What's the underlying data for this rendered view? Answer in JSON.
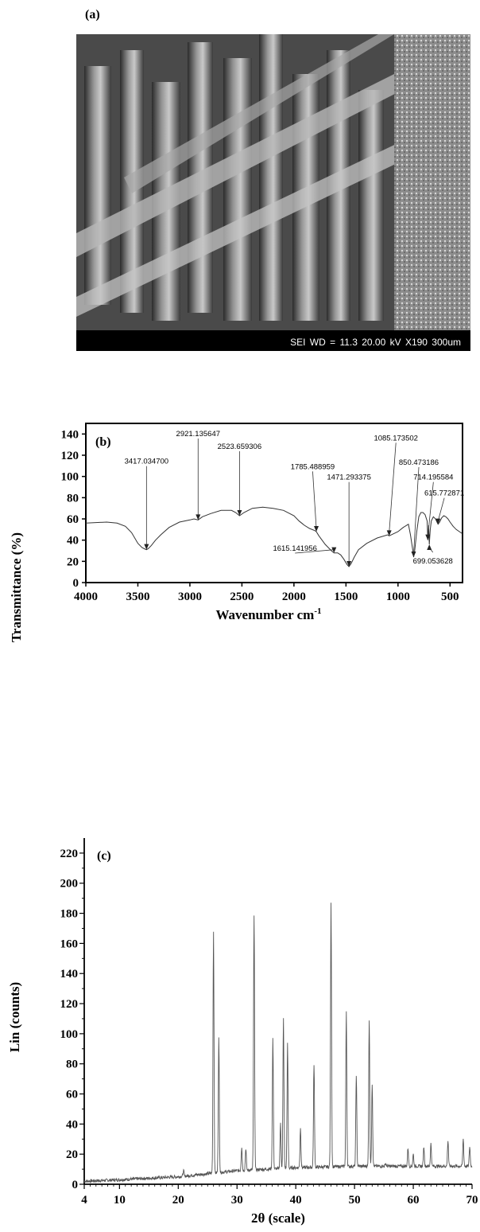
{
  "panels": {
    "a": {
      "label": "(a)",
      "sem_info": "SEI   WD = 11.3   20.00 kV   X190   300um"
    }
  },
  "chart_data": [
    {
      "type": "line",
      "panel_label": "(b)",
      "xlabel": "Wavenumber cm",
      "xlabel_sup": "-1",
      "ylabel": "Transmittance (%)",
      "xlim": [
        4000,
        380
      ],
      "ylim": [
        0,
        150
      ],
      "xticks": [
        4000,
        3500,
        3000,
        2500,
        2000,
        1500,
        1000,
        500
      ],
      "yticks": [
        0,
        20,
        40,
        60,
        80,
        100,
        120,
        140
      ],
      "series": [
        {
          "x": [
            4000,
            3800,
            3700,
            3620,
            3560,
            3500,
            3460,
            3430,
            3417,
            3400,
            3370,
            3330,
            3280,
            3200,
            3100,
            3000,
            2960,
            2921,
            2880,
            2800,
            2700,
            2600,
            2560,
            2523,
            2480,
            2400,
            2300,
            2200,
            2100,
            2000,
            1950,
            1900,
            1850,
            1800,
            1785,
            1760,
            1700,
            1640,
            1615,
            1580,
            1550,
            1520,
            1490,
            1471,
            1450,
            1420,
            1380,
            1300,
            1200,
            1100,
            1085,
            1000,
            950,
            900,
            880,
            860,
            850,
            840,
            820,
            800,
            780,
            760,
            740,
            720,
            714,
            705,
            699,
            690,
            680,
            660,
            640,
            625,
            615,
            600,
            580,
            560,
            540,
            520,
            500,
            470,
            440,
            410,
            380
          ],
          "y": [
            56,
            57,
            56,
            53,
            47,
            37,
            33,
            31.5,
            31,
            32,
            35,
            40,
            45,
            52,
            57,
            59,
            60,
            59,
            62,
            65,
            68,
            68,
            66,
            63,
            66,
            70,
            71,
            70,
            68,
            63,
            58,
            54,
            51,
            49,
            48,
            44,
            36,
            30,
            28,
            28,
            26,
            22,
            17,
            15,
            18,
            24,
            31,
            37,
            42,
            45,
            44,
            48,
            52,
            55,
            45,
            32,
            24,
            30,
            48,
            62,
            66,
            66,
            64,
            58,
            40,
            54,
            36,
            50,
            58,
            62,
            60,
            57,
            55,
            57,
            61,
            63,
            62,
            60,
            57,
            53,
            50,
            48,
            46
          ]
        }
      ],
      "annotations": [
        {
          "text": "3417.034700",
          "x": 3417,
          "y": 31,
          "label_x": 3417,
          "label_y": 112
        },
        {
          "text": "2921.135647",
          "x": 2921,
          "y": 59,
          "label_x": 2921,
          "label_y": 138
        },
        {
          "text": "2523.659306",
          "x": 2523,
          "y": 63,
          "label_x": 2523,
          "label_y": 126
        },
        {
          "text": "1785.488959",
          "x": 1785,
          "y": 48,
          "label_x": 1820,
          "label_y": 107
        },
        {
          "text": "1471.293375",
          "x": 1471,
          "y": 15,
          "label_x": 1471,
          "label_y": 97
        },
        {
          "text": "1615.141956",
          "x": 1615,
          "y": 28,
          "label_x": 1990,
          "label_y": 30
        },
        {
          "text": "1085.173502",
          "x": 1085,
          "y": 44,
          "label_x": 1020,
          "label_y": 134
        },
        {
          "text": "850.473186",
          "x": 850,
          "y": 24,
          "label_x": 800,
          "label_y": 111
        },
        {
          "text": "714.195584",
          "x": 714,
          "y": 40,
          "label_x": 660,
          "label_y": 97
        },
        {
          "text": "615.772871",
          "x": 615,
          "y": 55,
          "label_x": 555,
          "label_y": 82
        },
        {
          "text": "699.053628",
          "x": 699,
          "y": 36,
          "label_x": 665,
          "label_y": 21
        }
      ]
    },
    {
      "type": "line",
      "panel_label": "(c)",
      "xlabel": "2θ (scale)",
      "ylabel": "Lin (counts)",
      "xlim": [
        4,
        70
      ],
      "ylim": [
        0,
        230
      ],
      "xticks": [
        4,
        10,
        20,
        30,
        40,
        50,
        60,
        70
      ],
      "yticks": [
        0,
        20,
        40,
        60,
        80,
        100,
        120,
        140,
        160,
        180,
        200,
        220
      ],
      "baseline": [
        [
          4,
          2
        ],
        [
          10,
          3
        ],
        [
          20,
          5
        ],
        [
          25,
          7
        ],
        [
          30,
          9
        ],
        [
          40,
          11
        ],
        [
          50,
          12
        ],
        [
          60,
          12
        ],
        [
          70,
          12
        ]
      ],
      "peaks": [
        [
          20.9,
          9
        ],
        [
          26.0,
          168
        ],
        [
          26.9,
          97
        ],
        [
          30.8,
          25
        ],
        [
          31.5,
          24
        ],
        [
          32.9,
          178
        ],
        [
          36.1,
          97
        ],
        [
          37.4,
          40
        ],
        [
          37.9,
          110
        ],
        [
          38.6,
          93
        ],
        [
          40.8,
          37
        ],
        [
          43.1,
          80
        ],
        [
          46.0,
          188
        ],
        [
          48.6,
          114
        ],
        [
          50.3,
          73
        ],
        [
          52.5,
          108
        ],
        [
          53.0,
          67
        ],
        [
          55.3,
          14
        ],
        [
          59.1,
          24
        ],
        [
          60.0,
          20
        ],
        [
          61.8,
          25
        ],
        [
          63.0,
          27
        ],
        [
          65.9,
          29
        ],
        [
          68.5,
          30
        ],
        [
          69.6,
          25
        ]
      ]
    }
  ]
}
